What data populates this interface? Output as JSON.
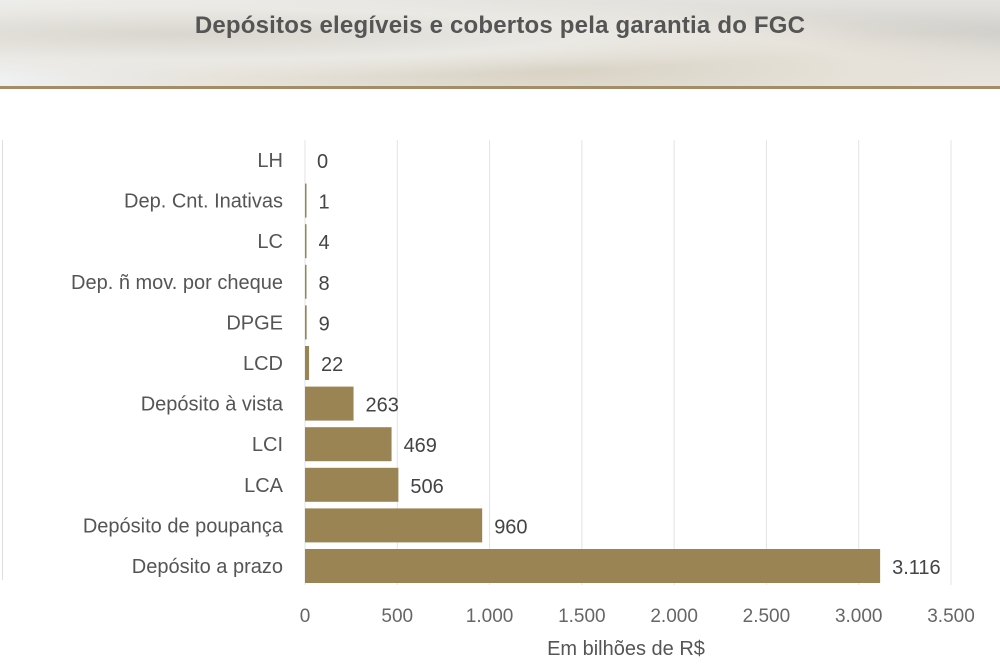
{
  "chart_data": {
    "type": "bar",
    "orientation": "horizontal",
    "title": "Depósitos elegíveis e cobertos pela garantia do FGC",
    "xlabel": "Em bilhões de R$",
    "ylabel": "",
    "categories": [
      "LH",
      "Dep. Cnt. Inativas",
      "LC",
      "Dep. ñ mov. por cheque",
      "DPGE",
      "LCD",
      "Depósito à vista",
      "LCI",
      "LCA",
      "Depósito de poupança",
      "Depósito a prazo"
    ],
    "values": [
      0,
      1,
      4,
      8,
      9,
      22,
      263,
      469,
      506,
      960,
      3116
    ],
    "value_labels": [
      "0",
      "1",
      "4",
      "8",
      "9",
      "22",
      "263",
      "469",
      "506",
      "960",
      "3.116"
    ],
    "xlim": [
      0,
      3500
    ],
    "xticks": [
      0,
      500,
      1000,
      1500,
      2000,
      2500,
      3000,
      3500
    ],
    "xtick_labels": [
      "0",
      "500",
      "1.000",
      "1.500",
      "2.000",
      "2.500",
      "3.000",
      "3.500"
    ],
    "grid": true,
    "bar_color": "#9a8454"
  }
}
